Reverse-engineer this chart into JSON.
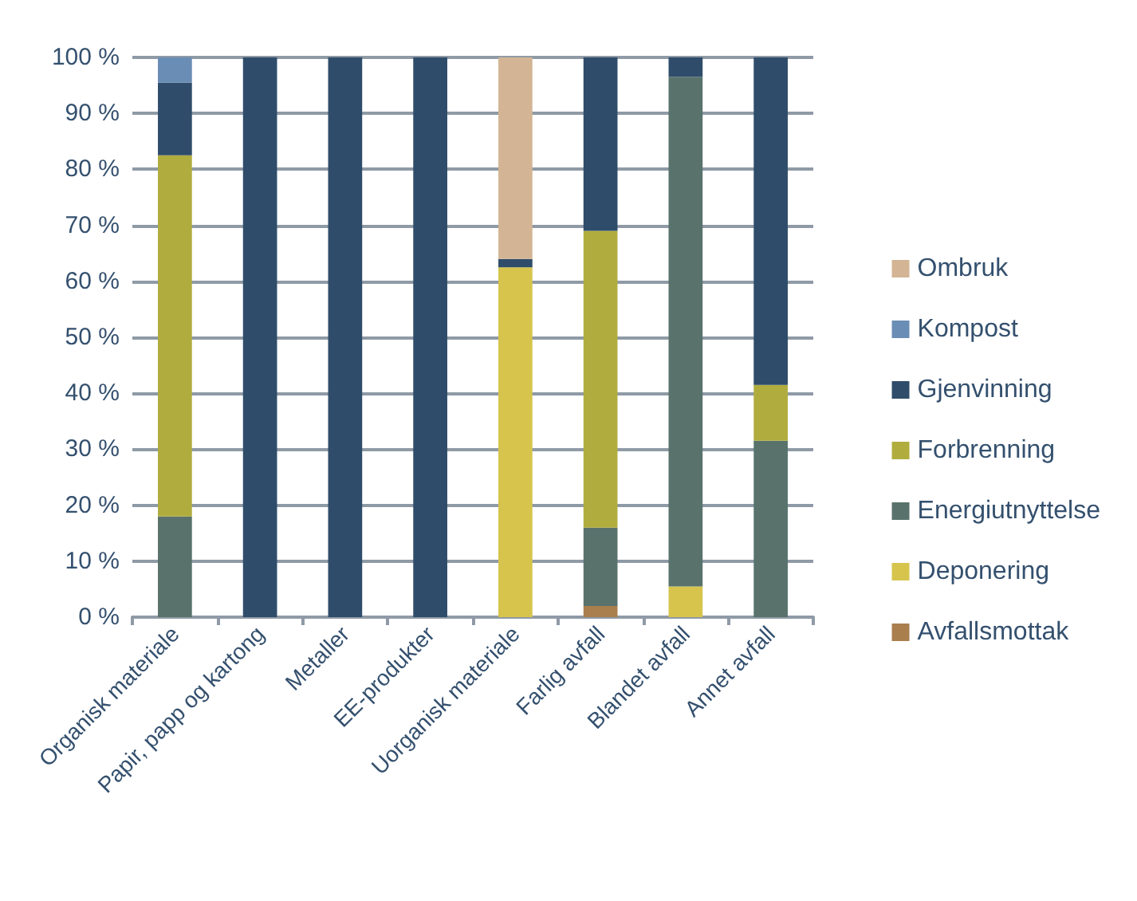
{
  "chart_data": {
    "type": "bar",
    "stacked": true,
    "categories": [
      "Organisk materiale",
      "Papir, papp og kartong",
      "Metaller",
      "EE-produkter",
      "Uorganisk materiale",
      "Farlig avfall",
      "Blandet avfall",
      "Annet avfall"
    ],
    "series": [
      {
        "name": "Avfallsmottak",
        "color": "#a97f4e",
        "values": [
          0,
          0,
          0,
          0,
          0,
          2,
          0,
          0
        ]
      },
      {
        "name": "Deponering",
        "color": "#d6c44d",
        "values": [
          0,
          0,
          0,
          0,
          62.5,
          0,
          5.5,
          0
        ]
      },
      {
        "name": "Energiutnyttelse",
        "color": "#59736c",
        "values": [
          18,
          0,
          0,
          0,
          0,
          14,
          91,
          31.5
        ]
      },
      {
        "name": "Forbrenning",
        "color": "#b0ad3e",
        "values": [
          64.5,
          0,
          0,
          0,
          0,
          53,
          0,
          10
        ]
      },
      {
        "name": "Gjenvinning",
        "color": "#2f4d6a",
        "values": [
          13,
          100,
          100,
          100,
          1.5,
          31,
          3.5,
          58.5
        ]
      },
      {
        "name": "Kompost",
        "color": "#6a8db5",
        "values": [
          4.5,
          0,
          0,
          0,
          0,
          0,
          0,
          0
        ]
      },
      {
        "name": "Ombruk",
        "color": "#d3b595",
        "values": [
          0,
          0,
          0,
          0,
          36,
          0,
          0,
          0
        ]
      }
    ],
    "ylim": [
      0,
      100
    ],
    "yticks": [
      {
        "value": 0,
        "label": "0 %"
      },
      {
        "value": 10,
        "label": "10 %"
      },
      {
        "value": 20,
        "label": "20 %"
      },
      {
        "value": 30,
        "label": "30 %"
      },
      {
        "value": 40,
        "label": "40 %"
      },
      {
        "value": 50,
        "label": "50 %"
      },
      {
        "value": 60,
        "label": "60 %"
      },
      {
        "value": 70,
        "label": "70 %"
      },
      {
        "value": 80,
        "label": "80 %"
      },
      {
        "value": 90,
        "label": "90 %"
      },
      {
        "value": 100,
        "label": "100 %"
      }
    ],
    "grid": "y",
    "legend": "right"
  }
}
